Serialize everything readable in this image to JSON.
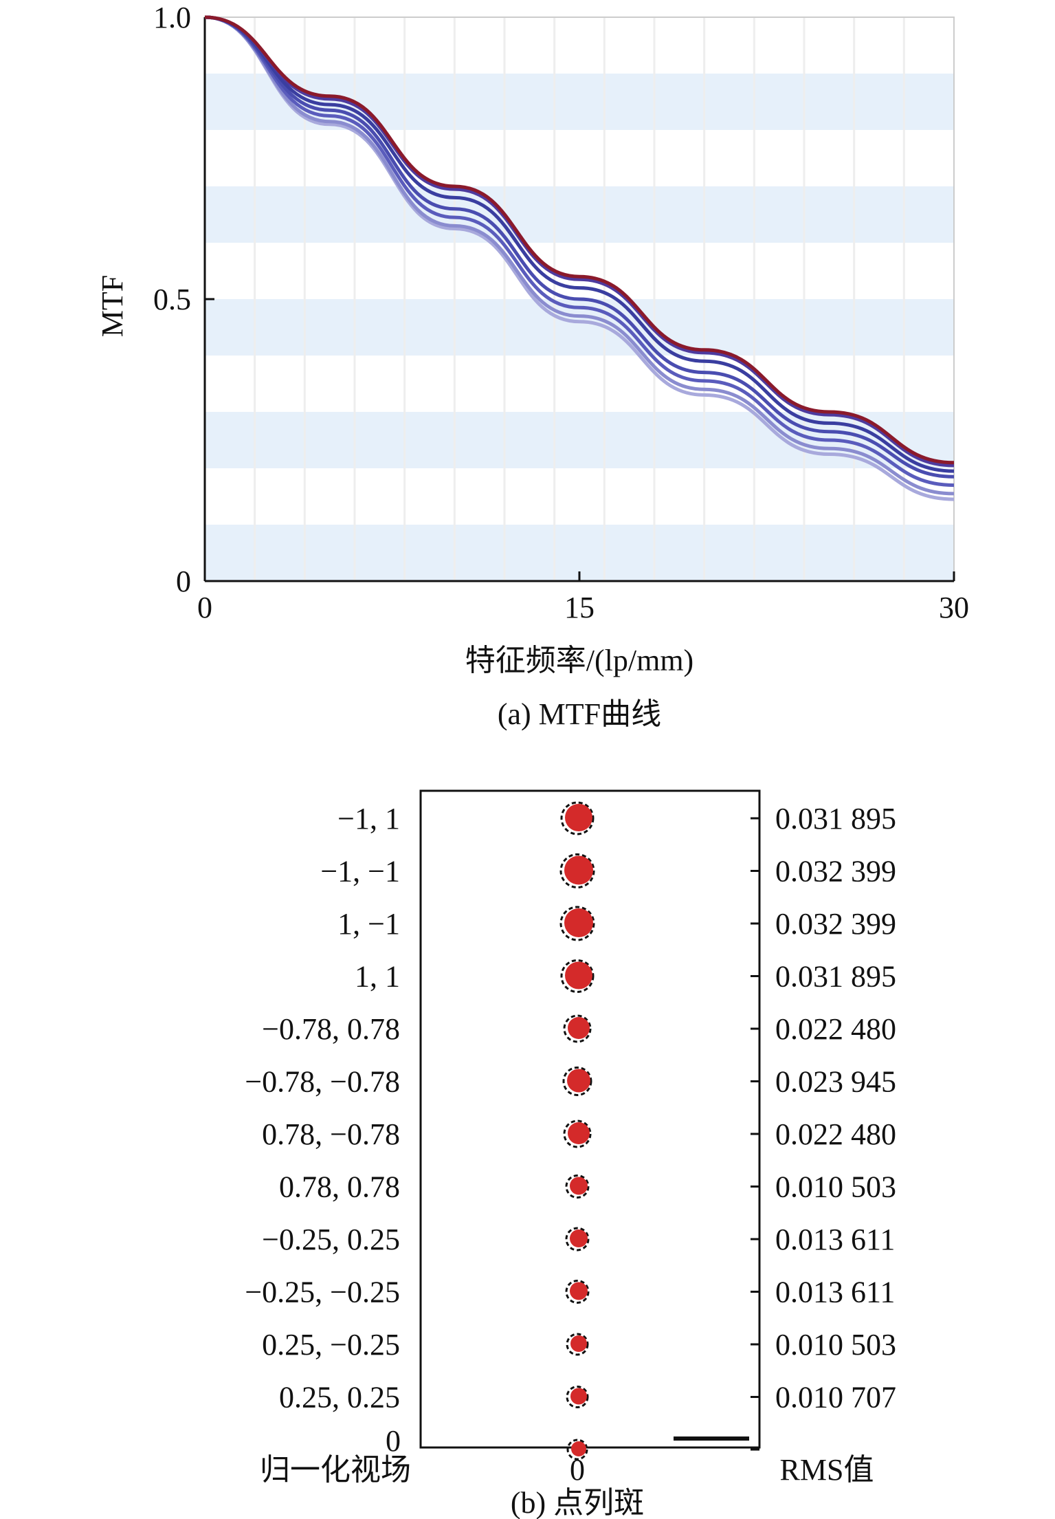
{
  "chart_data": [
    {
      "type": "line",
      "caption": "(a) MTF曲线",
      "xlabel": "特征频率/(lp/mm)",
      "ylabel": "MTF",
      "xlim": [
        0,
        30
      ],
      "ylim": [
        0,
        1.0
      ],
      "xticks": [
        "0",
        "15",
        "30"
      ],
      "yticks": [
        "0",
        "0.5",
        "1.0"
      ],
      "grid": true,
      "legend": "none",
      "series": [
        {
          "color": "#8b1a2b",
          "x": [
            0,
            5,
            10,
            15,
            20,
            25,
            30
          ],
          "y": [
            1.0,
            0.86,
            0.7,
            0.54,
            0.41,
            0.3,
            0.21
          ]
        },
        {
          "color": "#4d3a9e",
          "x": [
            0,
            5,
            10,
            15,
            20,
            25,
            30
          ],
          "y": [
            1.0,
            0.855,
            0.695,
            0.535,
            0.405,
            0.295,
            0.205
          ]
        },
        {
          "color": "#3a3ea0",
          "x": [
            0,
            5,
            10,
            15,
            20,
            25,
            30
          ],
          "y": [
            1.0,
            0.845,
            0.68,
            0.52,
            0.39,
            0.28,
            0.195
          ]
        },
        {
          "color": "#4a4db0",
          "x": [
            0,
            5,
            10,
            15,
            20,
            25,
            30
          ],
          "y": [
            1.0,
            0.835,
            0.66,
            0.5,
            0.37,
            0.265,
            0.185
          ]
        },
        {
          "color": "#5a5cbc",
          "x": [
            0,
            5,
            10,
            15,
            20,
            25,
            30
          ],
          "y": [
            1.0,
            0.825,
            0.645,
            0.485,
            0.355,
            0.25,
            0.17
          ]
        },
        {
          "color": "#8a8ccf",
          "x": [
            0,
            5,
            10,
            15,
            20,
            25,
            30
          ],
          "y": [
            1.0,
            0.815,
            0.63,
            0.47,
            0.34,
            0.235,
            0.155
          ]
        },
        {
          "color": "#a8a9dc",
          "x": [
            0,
            5,
            10,
            15,
            20,
            25,
            30
          ],
          "y": [
            1.0,
            0.81,
            0.625,
            0.46,
            0.33,
            0.225,
            0.145
          ]
        }
      ]
    },
    {
      "type": "scatter",
      "caption": "(b) 点列斑",
      "left_title": "归一化视场",
      "right_title": "RMS值",
      "center_label": "0",
      "bottom_left_label": "0",
      "fields": [
        {
          "field": "−1, 1",
          "rms": "0.031 895",
          "size": 1.0
        },
        {
          "field": "−1, −1",
          "rms": "0.032 399",
          "size": 1.05
        },
        {
          "field": "1, −1",
          "rms": "0.032 399",
          "size": 1.05
        },
        {
          "field": "1, 1",
          "rms": "0.031 895",
          "size": 1.0
        },
        {
          "field": "−0.78, 0.78",
          "rms": "0.022 480",
          "size": 0.8
        },
        {
          "field": "−0.78, −0.78",
          "rms": "0.023 945",
          "size": 0.85
        },
        {
          "field": "0.78, −0.78",
          "rms": "0.022 480",
          "size": 0.8
        },
        {
          "field": "0.78, 0.78",
          "rms": "0.010 503",
          "size": 0.65
        },
        {
          "field": "−0.25, 0.25",
          "rms": "0.013 611",
          "size": 0.65
        },
        {
          "field": "−0.25, −0.25",
          "rms": "0.013 611",
          "size": 0.65
        },
        {
          "field": "0.25, −0.25",
          "rms": "0.010 503",
          "size": 0.6
        },
        {
          "field": "0.25, 0.25",
          "rms": "0.010 707",
          "size": 0.6
        },
        {
          "field": "",
          "rms": "",
          "size": 0.55
        }
      ],
      "spot_color": "#d42a2a",
      "scale_bar_label": ""
    }
  ]
}
